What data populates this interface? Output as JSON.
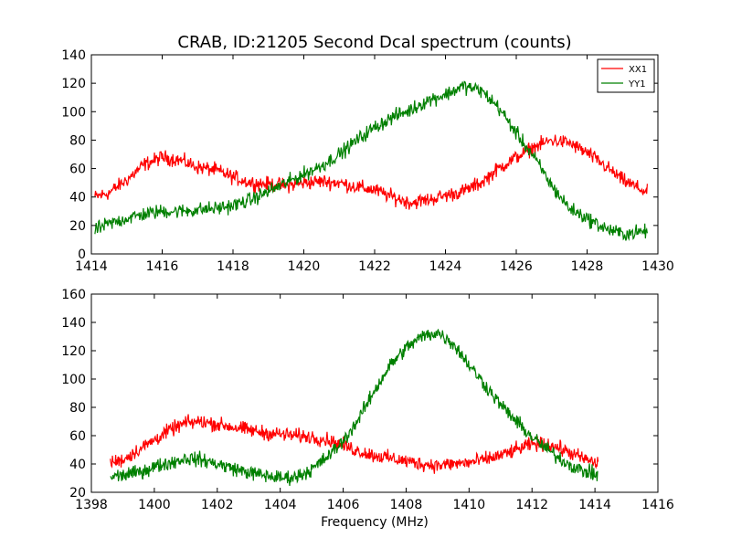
{
  "figure": {
    "title": "CRAB, ID:21205 Second Dcal spectrum (counts)"
  },
  "chart_data": [
    {
      "type": "line",
      "title": "CRAB, ID:21205 Second Dcal spectrum (counts)",
      "xlabel": "",
      "ylabel": "",
      "xlim": [
        1414,
        1430
      ],
      "ylim": [
        0,
        140
      ],
      "xticks": [
        1414,
        1416,
        1418,
        1420,
        1422,
        1424,
        1426,
        1428,
        1430
      ],
      "yticks": [
        0,
        20,
        40,
        60,
        80,
        100,
        120,
        140
      ],
      "legend": {
        "placement": "top-right",
        "entries": [
          "XX1",
          "YY1"
        ]
      },
      "grid": false,
      "series": [
        {
          "name": "XX1",
          "color": "#ff0000",
          "x": [
            1414.1,
            1414.5,
            1415.0,
            1415.5,
            1416.0,
            1416.5,
            1417.0,
            1417.5,
            1418.0,
            1418.5,
            1419.0,
            1419.5,
            1420.0,
            1420.5,
            1421.0,
            1421.5,
            1422.0,
            1422.5,
            1423.0,
            1423.5,
            1424.0,
            1424.5,
            1425.0,
            1425.5,
            1426.0,
            1426.5,
            1427.0,
            1427.5,
            1428.0,
            1428.5,
            1429.0,
            1429.7
          ],
          "values": [
            40,
            43,
            52,
            63,
            68,
            66,
            61,
            59,
            54,
            50,
            49,
            48,
            50,
            51,
            50,
            47,
            45,
            40,
            36,
            38,
            41,
            44,
            50,
            60,
            68,
            75,
            80,
            78,
            71,
            62,
            52,
            43
          ]
        },
        {
          "name": "YY1",
          "color": "#008000",
          "x": [
            1414.1,
            1414.5,
            1415.0,
            1415.5,
            1416.0,
            1416.5,
            1417.0,
            1417.5,
            1418.0,
            1418.5,
            1419.0,
            1419.5,
            1420.0,
            1420.5,
            1421.0,
            1421.5,
            1422.0,
            1422.5,
            1423.0,
            1423.5,
            1424.0,
            1424.5,
            1425.0,
            1425.5,
            1426.0,
            1426.5,
            1427.0,
            1427.5,
            1428.0,
            1428.5,
            1429.0,
            1429.7
          ],
          "values": [
            17,
            21,
            25,
            28,
            30,
            30,
            31,
            32,
            34,
            38,
            44,
            50,
            56,
            62,
            70,
            80,
            89,
            96,
            101,
            108,
            112,
            118,
            115,
            103,
            85,
            68,
            48,
            32,
            25,
            18,
            14,
            16
          ]
        }
      ]
    },
    {
      "type": "line",
      "title": "",
      "xlabel": "Frequency (MHz)",
      "ylabel": "",
      "xlim": [
        1398,
        1416
      ],
      "ylim": [
        20,
        160
      ],
      "xticks": [
        1398,
        1400,
        1402,
        1404,
        1406,
        1408,
        1410,
        1412,
        1414,
        1416
      ],
      "yticks": [
        20,
        40,
        60,
        80,
        100,
        120,
        140,
        160
      ],
      "grid": false,
      "series": [
        {
          "color": "#ff0000",
          "x": [
            1398.6,
            1399.0,
            1399.5,
            1400.0,
            1400.5,
            1401.0,
            1401.5,
            1402.0,
            1402.5,
            1403.0,
            1403.5,
            1404.0,
            1404.5,
            1405.0,
            1405.5,
            1406.0,
            1406.5,
            1407.0,
            1407.5,
            1408.0,
            1408.5,
            1409.0,
            1409.5,
            1410.0,
            1410.5,
            1411.0,
            1411.5,
            1412.0,
            1412.5,
            1413.0,
            1413.5,
            1414.1
          ],
          "values": [
            41,
            43,
            50,
            57,
            64,
            69,
            70,
            68,
            66,
            64,
            62,
            61,
            60,
            59,
            57,
            53,
            49,
            46,
            44,
            42,
            40,
            39,
            40,
            41,
            43,
            46,
            50,
            54,
            54,
            50,
            45,
            40
          ]
        },
        {
          "color": "#008000",
          "x": [
            1398.6,
            1399.0,
            1399.5,
            1400.0,
            1400.5,
            1401.0,
            1401.5,
            1402.0,
            1402.5,
            1403.0,
            1403.5,
            1404.0,
            1404.5,
            1405.0,
            1405.5,
            1406.0,
            1406.5,
            1407.0,
            1407.5,
            1408.0,
            1408.5,
            1409.0,
            1409.5,
            1410.0,
            1410.5,
            1411.0,
            1411.5,
            1412.0,
            1412.5,
            1413.0,
            1413.5,
            1414.1
          ],
          "values": [
            31,
            32,
            34,
            38,
            41,
            44,
            43,
            40,
            37,
            34,
            32,
            30,
            31,
            36,
            45,
            56,
            72,
            92,
            110,
            122,
            130,
            133,
            125,
            110,
            96,
            82,
            70,
            59,
            50,
            42,
            36,
            32
          ]
        }
      ]
    }
  ]
}
